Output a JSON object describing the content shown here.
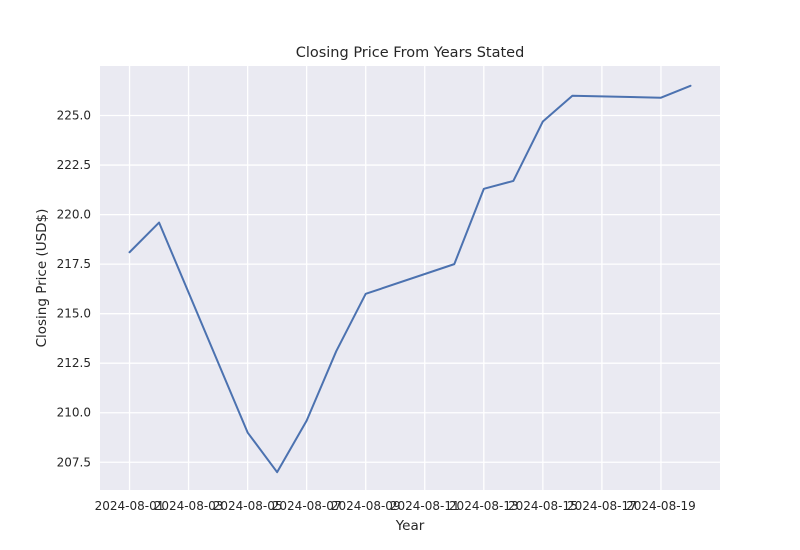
{
  "chart_data": {
    "type": "line",
    "title": "Closing Price From Years Stated",
    "xlabel": "Year",
    "ylabel": "Closing Price (USD$)",
    "x": [
      "2024-08-01",
      "2024-08-02",
      "2024-08-05",
      "2024-08-06",
      "2024-08-07",
      "2024-08-08",
      "2024-08-09",
      "2024-08-12",
      "2024-08-13",
      "2024-08-14",
      "2024-08-15",
      "2024-08-16",
      "2024-08-19",
      "2024-08-20"
    ],
    "series": [
      {
        "values": [
          218.1,
          219.6,
          209.0,
          207.0,
          209.6,
          213.1,
          216.0,
          217.5,
          221.3,
          221.7,
          224.7,
          226.0,
          225.9,
          226.5
        ]
      }
    ],
    "xlim": [
      "2024-07-31",
      "2024-08-21"
    ],
    "ylim": [
      206.1,
      227.5
    ],
    "xticks": [
      "2024-08-01",
      "2024-08-03",
      "2024-08-05",
      "2024-08-07",
      "2024-08-09",
      "2024-08-11",
      "2024-08-13",
      "2024-08-15",
      "2024-08-17",
      "2024-08-19"
    ],
    "yticks": [
      "207.5",
      "210.0",
      "212.5",
      "215.0",
      "217.5",
      "220.0",
      "222.5",
      "225.0"
    ],
    "grid": true,
    "colors": {
      "background": "#eaeaf2",
      "grid": "#ffffff",
      "line": "#4c72b0",
      "text": "#262626"
    }
  }
}
